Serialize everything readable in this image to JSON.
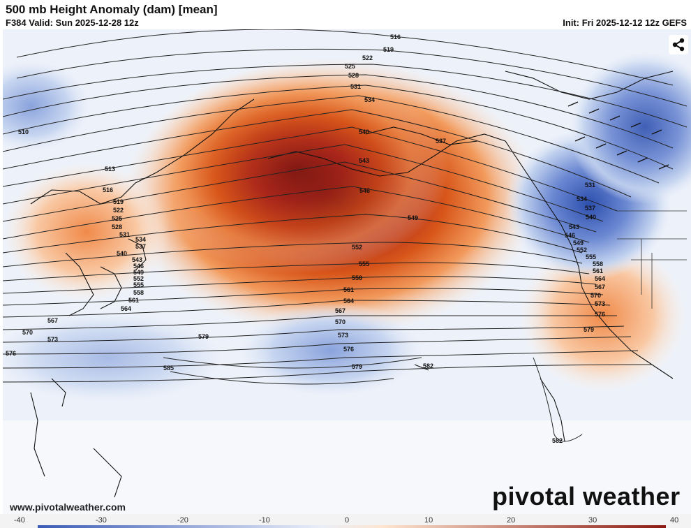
{
  "header": {
    "title": "500 mb Height Anomaly (dam) [mean]",
    "valid": "F384 Valid: Sun 2025-12-28 12z",
    "init": "Init: Fri 2025-12-12 12z GEFS"
  },
  "map": {
    "contour_labels": [
      "516",
      "519",
      "522",
      "525",
      "528",
      "531",
      "534",
      "537",
      "540",
      "543",
      "546",
      "549",
      "552",
      "555",
      "558",
      "561",
      "564",
      "567",
      "570",
      "573",
      "576",
      "579",
      "582",
      "585",
      "510",
      "513"
    ],
    "west_labels": [
      "510",
      "513",
      "516",
      "519",
      "522",
      "525",
      "528",
      "531",
      "534",
      "537",
      "540",
      "543",
      "546",
      "549",
      "552",
      "555",
      "558",
      "561",
      "564",
      "567",
      "570",
      "573",
      "576",
      "579"
    ],
    "center_labels": [
      "516",
      "519",
      "522",
      "525",
      "528",
      "531",
      "534",
      "537",
      "540",
      "543",
      "546",
      "549",
      "552",
      "555",
      "558",
      "561",
      "564",
      "567",
      "570",
      "573",
      "576",
      "579",
      "582",
      "585"
    ],
    "east_labels": [
      "531",
      "534",
      "537",
      "540",
      "543",
      "546",
      "549",
      "552",
      "555",
      "558",
      "561",
      "564",
      "567",
      "570",
      "573",
      "576",
      "579",
      "582"
    ],
    "colors": {
      "warm_strong": "#8b1a12",
      "warm_mid": "#d8561a",
      "warm_light": "#f7b98a",
      "cool_strong": "#3b5bb5",
      "cool_mid": "#7e9ad8",
      "cool_light": "#cfdcf1"
    }
  },
  "colorbar": {
    "ticks": [
      "-40",
      "-30",
      "-20",
      "-10",
      "0",
      "10",
      "20",
      "30",
      "40"
    ]
  },
  "branding": {
    "website": "www.pivotalweather.com",
    "logo_text": "pivotal weather"
  },
  "icons": {
    "share": "share-icon"
  }
}
